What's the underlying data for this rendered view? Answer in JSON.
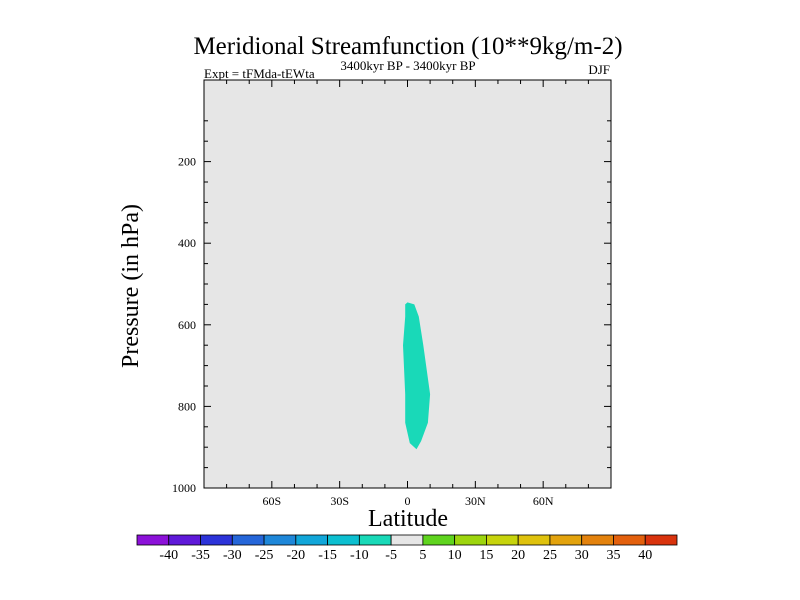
{
  "chart_data": {
    "type": "contour",
    "title": "Meridional Streamfunction (10**9kg/m-2)",
    "subtitle_left": "Expt = tFMda-tEWta",
    "subtitle_center": "3400kyr BP - 3400kyr BP",
    "subtitle_right": "DJF",
    "xlabel": "Latitude",
    "ylabel": "Pressure (in hPa)",
    "xlim": [
      -90,
      90
    ],
    "ylim": [
      1000,
      0
    ],
    "x_major_ticks": [
      -60,
      -30,
      0,
      30,
      60
    ],
    "x_tick_labels": [
      "60S",
      "30S",
      "0",
      "30N",
      "60N"
    ],
    "y_major_ticks": [
      200,
      400,
      600,
      800,
      1000
    ],
    "y_tick_labels": [
      "200",
      "400",
      "600",
      "800",
      "1000"
    ],
    "background_color": "#e6e6e6",
    "contour_regions": [
      {
        "level_range": "-10 to -5",
        "color": "#19d9b8",
        "polygon": [
          [
            0,
            545
          ],
          [
            3,
            550
          ],
          [
            5,
            580
          ],
          [
            7,
            650
          ],
          [
            10,
            770
          ],
          [
            9,
            840
          ],
          [
            6,
            885
          ],
          [
            4,
            905
          ],
          [
            1,
            890
          ],
          [
            -1,
            840
          ],
          [
            -1,
            770
          ],
          [
            -2,
            650
          ],
          [
            -1,
            580
          ],
          [
            -1,
            550
          ]
        ]
      }
    ],
    "colorbar": {
      "labels": [
        "-40",
        "-35",
        "-30",
        "-25",
        "-20",
        "-15",
        "-10",
        "-5",
        "5",
        "10",
        "15",
        "20",
        "25",
        "30",
        "35",
        "40"
      ],
      "colors": [
        "#8c11d9",
        "#5f19d9",
        "#2c33d9",
        "#2566d9",
        "#1e87d9",
        "#11a6d9",
        "#0cbfd0",
        "#19d9b8",
        "#e6e6e6",
        "#5fd41e",
        "#9dd50e",
        "#c7d40c",
        "#dfc20d",
        "#e3a30d",
        "#e3820d",
        "#e3600d",
        "#d9330d"
      ]
    }
  }
}
